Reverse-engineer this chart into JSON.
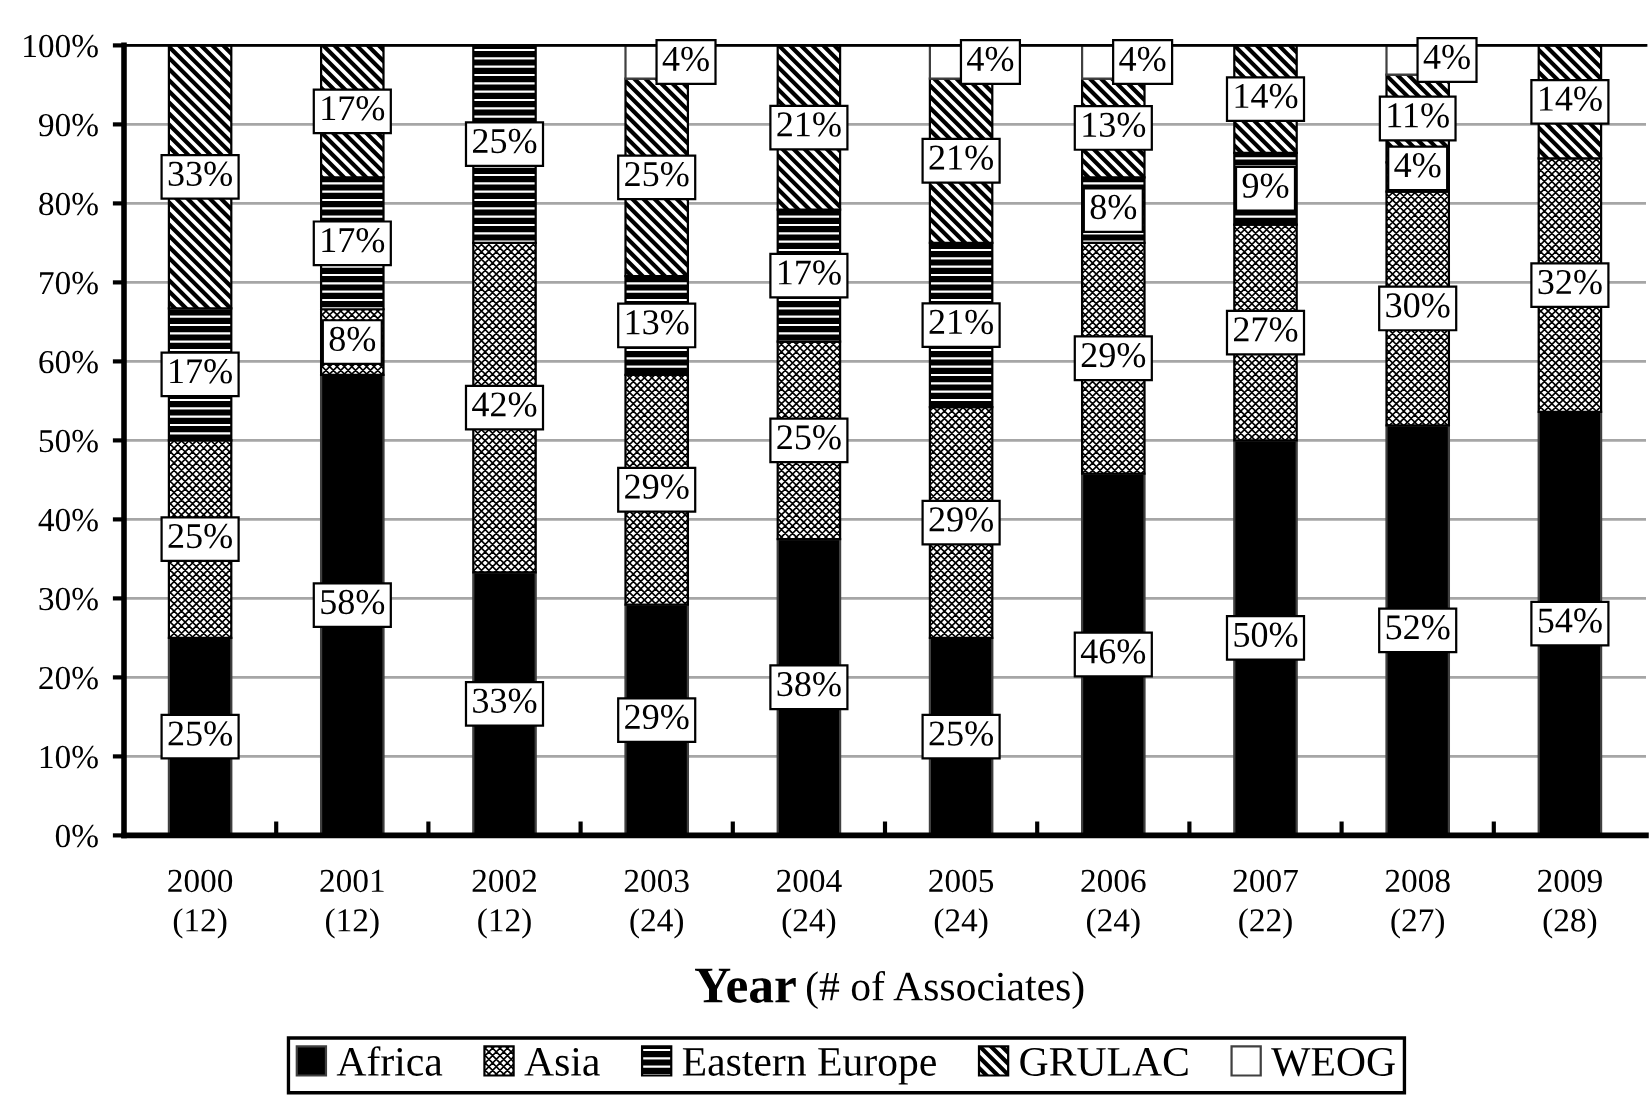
{
  "chart_data": {
    "type": "bar",
    "stacked": true,
    "categories": [
      "2000\n(12)",
      "2001\n(12)",
      "2002\n(12)",
      "2003\n(24)",
      "2004\n(24)",
      "2005\n(24)",
      "2006\n(24)",
      "2007\n(22)",
      "2008\n(27)",
      "2009\n(28)"
    ],
    "xlabel": "Year (# of Associates)",
    "ylim": [
      0,
      100
    ],
    "yticks": [
      {
        "value": 0,
        "label": "0%"
      },
      {
        "value": 10,
        "label": "10%"
      },
      {
        "value": 20,
        "label": "20%"
      },
      {
        "value": 30,
        "label": "30%"
      },
      {
        "value": 40,
        "label": "40%"
      },
      {
        "value": 50,
        "label": "50%"
      },
      {
        "value": 60,
        "label": "60%"
      },
      {
        "value": 70,
        "label": "70%"
      },
      {
        "value": 80,
        "label": "80%"
      },
      {
        "value": 90,
        "label": "90%"
      },
      {
        "value": 100,
        "label": "100%"
      }
    ],
    "grid": "y",
    "legend": "bottom",
    "series": [
      {
        "name": "Africa",
        "color": "#000000",
        "values": [
          25,
          58.3,
          33.3,
          29.2,
          37.5,
          25,
          45.8,
          50,
          51.9,
          53.6
        ],
        "value_labels": [
          "25%",
          "58%",
          "33%",
          "29%",
          "38%",
          "25%",
          "46%",
          "50%",
          "52%",
          "54%"
        ]
      },
      {
        "name": "Asia",
        "color": "#000000",
        "values": [
          25,
          8.3,
          41.7,
          29.1,
          25,
          29.2,
          29.2,
          27.3,
          29.6,
          32.1
        ],
        "value_labels": [
          "25%",
          "8%",
          "42%",
          "29%",
          "25%",
          "29%",
          "29%",
          "27%",
          "30%",
          "32%"
        ]
      },
      {
        "name": "Eastern Europe",
        "color": "#000000",
        "values": [
          16.7,
          16.7,
          25,
          12.5,
          16.7,
          20.8,
          8.3,
          9.1,
          3.7,
          null
        ],
        "value_labels": [
          "17%",
          "17%",
          "25%",
          "13%",
          "17%",
          "21%",
          "8%",
          "9%",
          "4%",
          null
        ]
      },
      {
        "name": "GRULAC",
        "color": "#000000",
        "values": [
          33.3,
          16.7,
          null,
          25,
          20.8,
          20.8,
          12.5,
          13.6,
          11.1,
          14.3
        ],
        "value_labels": [
          "33%",
          "17%",
          null,
          "25%",
          "21%",
          "21%",
          "13%",
          "14%",
          "11%",
          "14%"
        ]
      },
      {
        "name": "WEOG",
        "color": "#ffffff",
        "values": [
          null,
          null,
          null,
          4.2,
          null,
          4.2,
          4.2,
          null,
          3.7,
          null
        ],
        "value_labels": [
          null,
          null,
          null,
          "4%",
          null,
          "4%",
          "4%",
          null,
          "4%",
          null
        ]
      }
    ]
  }
}
